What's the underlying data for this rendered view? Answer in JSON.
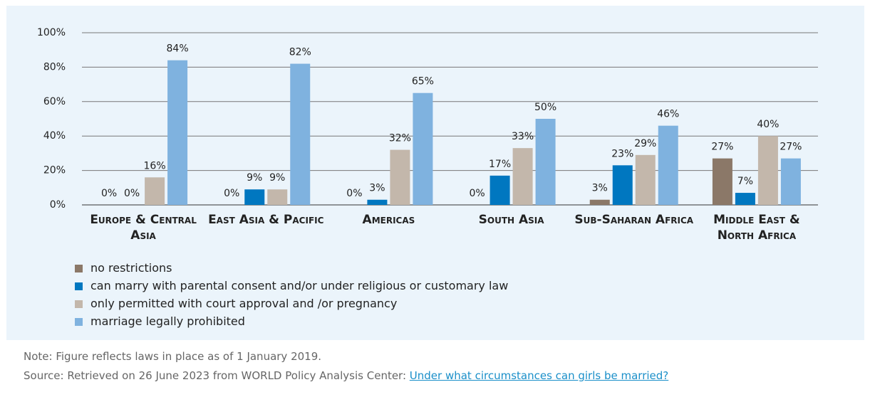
{
  "chart_data": {
    "type": "bar",
    "categories": [
      "Europe & Central Asia",
      "East Asia & Pacific",
      "Americas",
      "South Asia",
      "Sub-Saharan Africa",
      "Middle East & North Africa"
    ],
    "series": [
      {
        "name": "no restrictions",
        "color": "#8b7868",
        "values": [
          0,
          0,
          0,
          0,
          3,
          27
        ],
        "value_labels": [
          "0%",
          "0%",
          "0%",
          "0%",
          "3%",
          "27%"
        ]
      },
      {
        "name": "can marry with parental consent and/or under religious or customary law",
        "color": "#0077c0",
        "values": [
          0,
          9,
          3,
          17,
          23,
          7
        ],
        "value_labels": [
          "0%",
          "9%",
          "3%",
          "17%",
          "23%",
          "7%"
        ]
      },
      {
        "name": "only permitted with court approval and /or pregnancy",
        "color": "#c3b7ab",
        "values": [
          16,
          9,
          32,
          33,
          29,
          40
        ],
        "value_labels": [
          "16%",
          "9%",
          "32%",
          "33%",
          "29%",
          "40%"
        ]
      },
      {
        "name": "marriage legally prohibited",
        "color": "#7fb2df",
        "values": [
          84,
          82,
          65,
          50,
          46,
          27
        ],
        "value_labels": [
          "84%",
          "82%",
          "65%",
          "50%",
          "46%",
          "27%"
        ]
      }
    ],
    "ylim": [
      0,
      100
    ],
    "yticks": [
      {
        "value": 0,
        "label": "0%"
      },
      {
        "value": 20,
        "label": "20%"
      },
      {
        "value": 40,
        "label": "40%"
      },
      {
        "value": 60,
        "label": "60%"
      },
      {
        "value": 80,
        "label": "80%"
      },
      {
        "value": 100,
        "label": "100%"
      }
    ],
    "grid": true
  },
  "note": "Note: Figure reflects laws in place as of 1 January 2019.",
  "source": "Source: Retrieved on 26 June 2023 from WORLD Policy Analysis Center:",
  "source_link": "Under what circumstances can girls be married?"
}
